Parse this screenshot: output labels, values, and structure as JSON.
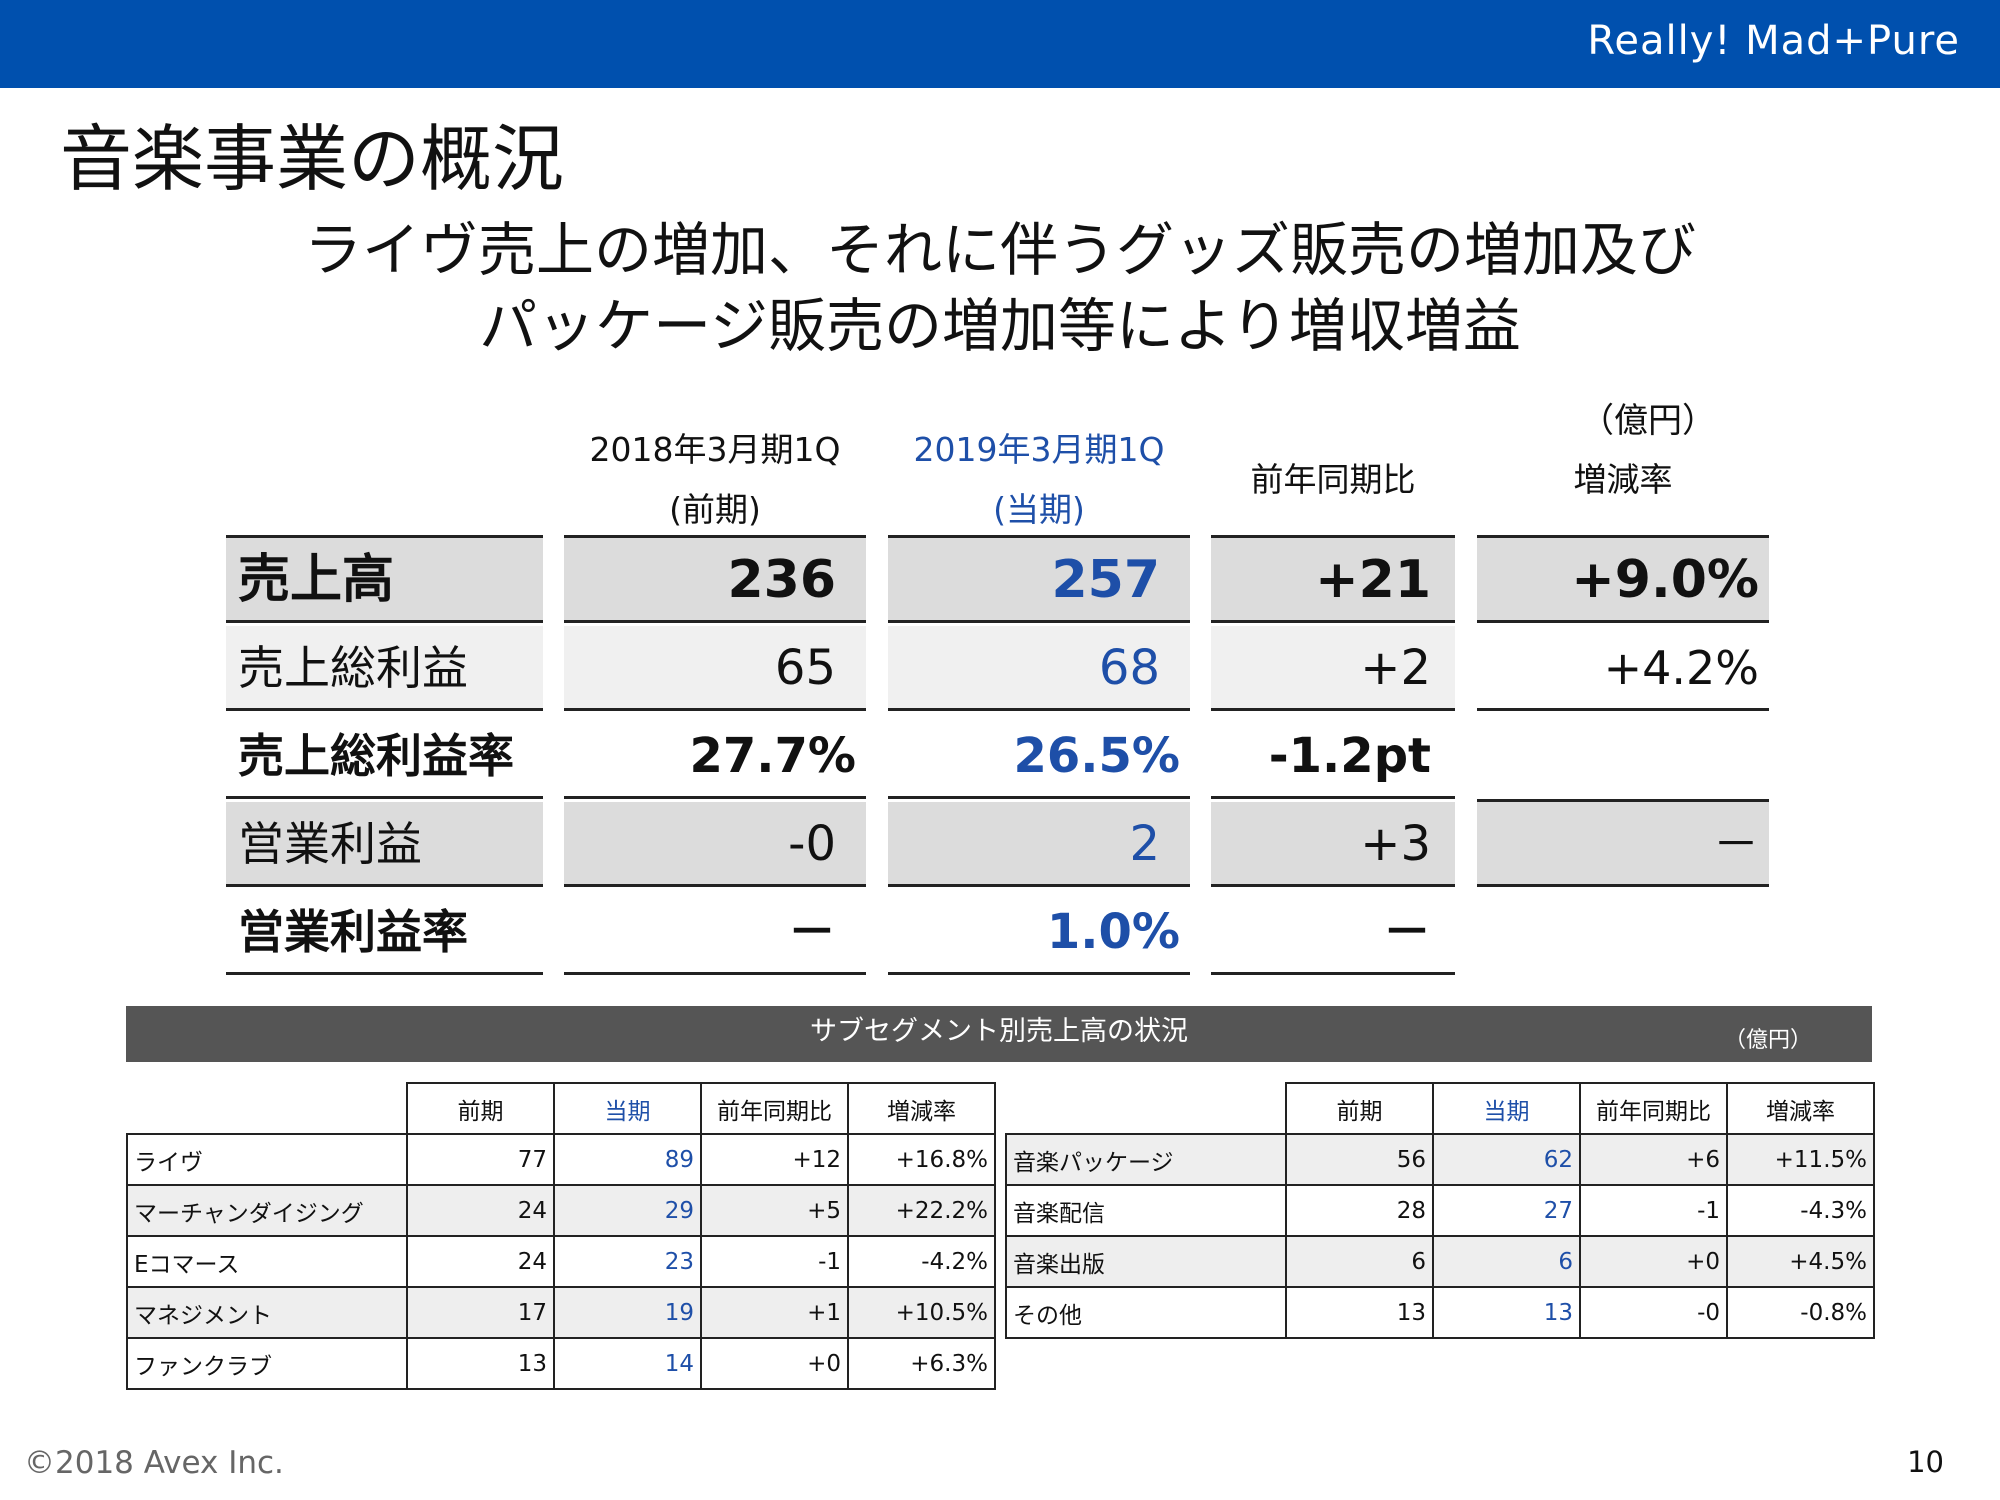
{
  "header": {
    "tagline": "Really! Mad+Pure",
    "bar_color": "#0050ae"
  },
  "title": "音楽事業の概況",
  "headline": [
    "ライヴ売上の増加、それに伴うグッズ販売の増加及び",
    "パッケージ販売の増加等により増収増益"
  ],
  "main_table": {
    "unit": "（億円）",
    "columns": {
      "prev": [
        "2018年3月期1Q",
        "(前期)"
      ],
      "current": [
        "2019年3月期1Q",
        "(当期)"
      ],
      "yoy": "前年同期比",
      "rate": "増減率"
    },
    "rows": [
      {
        "label": "売上高",
        "prev": "236",
        "current": "257",
        "yoy": "+21",
        "rate": "+9.0%"
      },
      {
        "label": "売上総利益",
        "prev": "65",
        "current": "68",
        "yoy": "+2",
        "rate": "+4.2%"
      },
      {
        "label": "売上総利益率",
        "prev": "27.7%",
        "current": "26.5%",
        "yoy": "-1.2pt",
        "rate": ""
      },
      {
        "label": "営業利益",
        "prev": "-0",
        "current": "2",
        "yoy": "+3",
        "rate": "－"
      },
      {
        "label": "営業利益率",
        "prev": "－",
        "current": "1.0%",
        "yoy": "－",
        "rate": ""
      }
    ],
    "accent_color": "#1e4fa8"
  },
  "sub_segment": {
    "title": "サブセグメント別売上高の状況",
    "unit": "（億円）",
    "headers": {
      "prev": "前期",
      "current": "当期",
      "yoy": "前年同期比",
      "rate": "増減率"
    },
    "left": [
      {
        "name": "ライヴ",
        "prev": "77",
        "current": "89",
        "yoy": "+12",
        "rate": "+16.8%"
      },
      {
        "name": "マーチャンダイジング",
        "prev": "24",
        "current": "29",
        "yoy": "+5",
        "rate": "+22.2%"
      },
      {
        "name": "Eコマース",
        "prev": "24",
        "current": "23",
        "yoy": "-1",
        "rate": "-4.2%"
      },
      {
        "name": "マネジメント",
        "prev": "17",
        "current": "19",
        "yoy": "+1",
        "rate": "+10.5%"
      },
      {
        "name": "ファンクラブ",
        "prev": "13",
        "current": "14",
        "yoy": "+0",
        "rate": "+6.3%"
      }
    ],
    "right": [
      {
        "name": "音楽パッケージ",
        "prev": "56",
        "current": "62",
        "yoy": "+6",
        "rate": "+11.5%"
      },
      {
        "name": "音楽配信",
        "prev": "28",
        "current": "27",
        "yoy": "-1",
        "rate": "-4.3%"
      },
      {
        "name": "音楽出版",
        "prev": "6",
        "current": "6",
        "yoy": "+0",
        "rate": "+4.5%"
      },
      {
        "name": "その他",
        "prev": "13",
        "current": "13",
        "yoy": "-0",
        "rate": "-0.8%"
      }
    ]
  },
  "footer": {
    "copyright": "©2018 Avex Inc.",
    "page": "10"
  }
}
